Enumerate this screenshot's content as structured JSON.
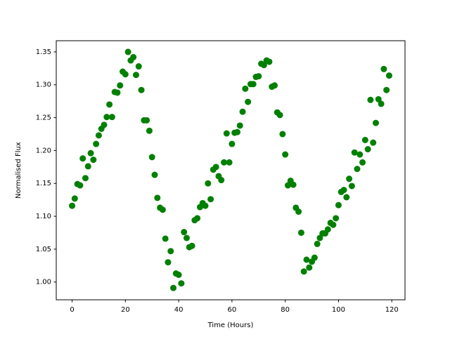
{
  "chart_data": {
    "type": "scatter",
    "xlabel": "Time (Hours)",
    "ylabel": "Normalised Flux",
    "x": [
      0,
      1,
      2,
      3,
      4,
      5,
      6,
      7,
      8,
      9,
      10,
      11,
      12,
      13,
      14,
      15,
      16,
      17,
      18,
      19,
      20,
      21,
      22,
      23,
      24,
      25,
      26,
      27,
      28,
      29,
      30,
      31,
      32,
      33,
      34,
      35,
      36,
      37,
      38,
      39,
      40,
      41,
      42,
      43,
      44,
      45,
      46,
      47,
      48,
      49,
      50,
      51,
      52,
      53,
      54,
      55,
      56,
      57,
      58,
      59,
      60,
      61,
      62,
      63,
      64,
      65,
      66,
      67,
      68,
      69,
      70,
      71,
      72,
      73,
      74,
      75,
      76,
      77,
      78,
      79,
      80,
      81,
      82,
      83,
      84,
      85,
      86,
      87,
      88,
      89,
      90,
      91,
      92,
      93,
      94,
      95,
      96,
      97,
      98,
      99,
      100,
      101,
      102,
      103,
      104,
      105,
      106,
      107,
      108,
      109,
      110,
      111,
      112,
      113,
      114,
      115,
      116,
      117,
      118,
      119
    ],
    "series": [
      {
        "color": "#008000",
        "values": [
          1.116,
          1.127,
          1.149,
          1.147,
          1.188,
          1.158,
          1.176,
          1.196,
          1.186,
          1.21,
          1.223,
          1.233,
          1.239,
          1.251,
          1.27,
          1.251,
          1.289,
          1.288,
          1.299,
          1.32,
          1.316,
          1.35,
          1.337,
          1.342,
          1.315,
          1.328,
          1.292,
          1.246,
          1.246,
          1.23,
          1.19,
          1.163,
          1.128,
          1.113,
          1.11,
          1.066,
          1.03,
          1.047,
          0.991,
          1.013,
          1.011,
          0.998,
          1.076,
          1.067,
          1.053,
          1.055,
          1.094,
          1.097,
          1.114,
          1.12,
          1.116,
          1.15,
          1.126,
          1.171,
          1.175,
          1.161,
          1.155,
          1.182,
          1.226,
          1.182,
          1.21,
          1.227,
          1.228,
          1.238,
          1.259,
          1.294,
          1.274,
          1.301,
          1.301,
          1.312,
          1.313,
          1.332,
          1.33,
          1.337,
          1.335,
          1.297,
          1.299,
          1.258,
          1.254,
          1.225,
          1.194,
          1.147,
          1.154,
          1.148,
          1.113,
          1.107,
          1.075,
          1.016,
          1.034,
          1.022,
          1.031,
          1.037,
          1.058,
          1.067,
          1.074,
          1.074,
          1.08,
          1.09,
          1.087,
          1.097,
          1.117,
          1.137,
          1.14,
          1.129,
          1.157,
          1.146,
          1.197,
          1.172,
          1.194,
          1.182,
          1.216,
          1.202,
          1.277,
          1.212,
          1.242,
          1.278,
          1.271,
          1.324,
          1.292,
          1.314
        ]
      }
    ],
    "xlim": [
      -5.95,
      124.95
    ],
    "xticks": [
      0,
      20,
      40,
      60,
      80,
      100,
      120
    ],
    "ylim": [
      0.973,
      1.367
    ],
    "yticks": [
      {
        "value": 1,
        "label": "1.00"
      },
      1.05,
      {
        "value": 1.1,
        "label": "1.10"
      },
      1.15,
      {
        "value": 1.2,
        "label": "1.20"
      },
      1.25,
      {
        "value": 1.3,
        "label": "1.30"
      },
      1.35
    ]
  }
}
